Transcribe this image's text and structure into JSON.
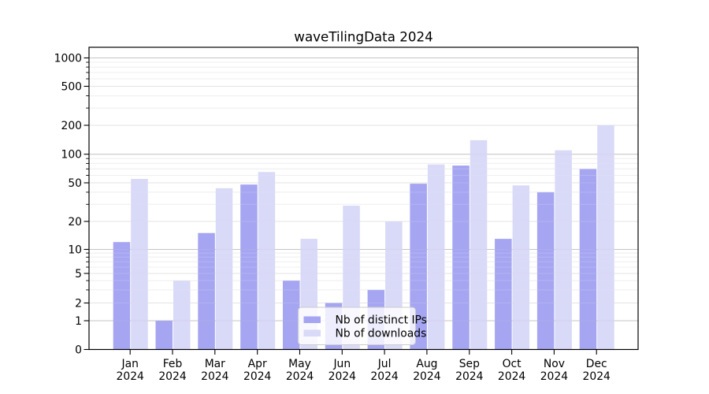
{
  "chart_data": {
    "type": "bar",
    "title": "waveTilingData 2024",
    "categories": [
      "Jan 2024",
      "Feb 2024",
      "Mar 2024",
      "Apr 2024",
      "May 2024",
      "Jun 2024",
      "Jul 2024",
      "Aug 2024",
      "Sep 2024",
      "Oct 2024",
      "Nov 2024",
      "Dec 2024"
    ],
    "series": [
      {
        "name": "Nb of distinct IPs",
        "color": "#a5a5f2",
        "values": [
          12,
          1,
          15,
          48,
          4,
          2,
          3,
          49,
          76,
          13,
          40,
          70
        ]
      },
      {
        "name": "Nb of downloads",
        "color": "#d9d9f8",
        "values": [
          55,
          4,
          44,
          65,
          13,
          29,
          20,
          78,
          140,
          47,
          110,
          200
        ]
      }
    ],
    "y_axis": {
      "scale": "symlog",
      "ticks": [
        0,
        1,
        2,
        5,
        10,
        20,
        50,
        100,
        200,
        500,
        1000
      ],
      "minor_ticks": [
        3,
        4,
        6,
        7,
        8,
        9,
        30,
        40,
        60,
        70,
        80,
        90,
        300,
        400,
        600,
        700,
        800,
        900
      ],
      "decade_ticks": [
        1,
        10,
        100,
        1000
      ],
      "range": [
        0,
        1200
      ]
    },
    "x_axis": {
      "tick_label_lines": 2
    },
    "legend": {
      "entries": [
        "Nb of distinct IPs",
        "Nb of downloads"
      ],
      "position": "lower-center"
    },
    "grid": "horizontal major + minor",
    "colors": {
      "axis": "#000000",
      "grid_decade": "#c4c4c4",
      "grid_labeled": "#e3e3e3",
      "grid_minor": "#efefef",
      "legend_border": "#cccccc",
      "text": "#000000",
      "background": "#ffffff"
    }
  }
}
